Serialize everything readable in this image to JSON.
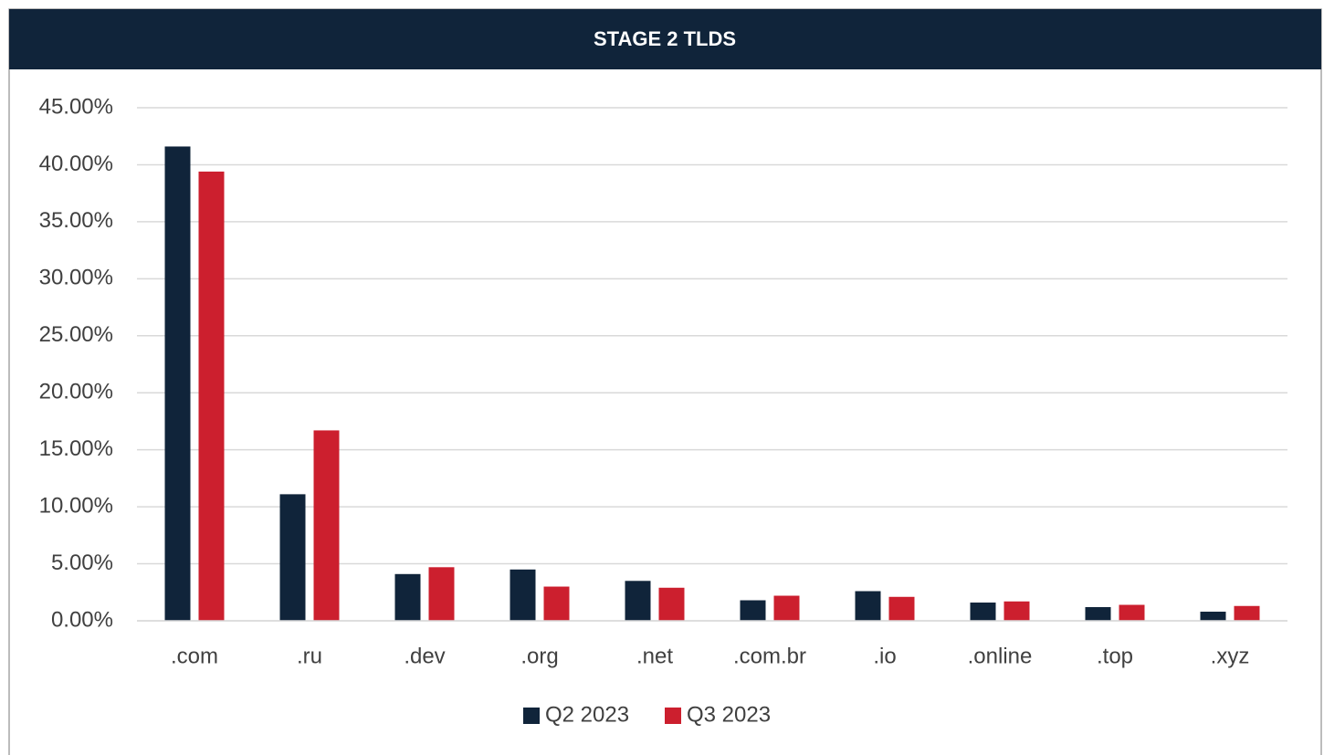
{
  "chart_data": {
    "type": "bar",
    "title": "STAGE 2 TLDS",
    "categories": [
      ".com",
      ".ru",
      ".dev",
      ".org",
      ".net",
      ".com.br",
      ".io",
      ".online",
      ".top",
      ".xyz"
    ],
    "series": [
      {
        "name": "Q2 2023",
        "color": "#10243a",
        "values": [
          41.6,
          11.1,
          4.1,
          4.5,
          3.5,
          1.8,
          2.6,
          1.6,
          1.2,
          0.8
        ]
      },
      {
        "name": "Q3 2023",
        "color": "#cc1f2e",
        "values": [
          39.4,
          16.7,
          4.7,
          3.0,
          2.9,
          2.2,
          2.1,
          1.7,
          1.4,
          1.3
        ]
      }
    ],
    "ylim": [
      0,
      45
    ],
    "yticks": [
      {
        "value": 0,
        "label": "0.00%"
      },
      {
        "value": 5,
        "label": "5.00%"
      },
      {
        "value": 10,
        "label": "10.00%"
      },
      {
        "value": 15,
        "label": "15.00%"
      },
      {
        "value": 20,
        "label": "20.00%"
      },
      {
        "value": 25,
        "label": "25.00%"
      },
      {
        "value": 30,
        "label": "30.00%"
      },
      {
        "value": 35,
        "label": "35.00%"
      },
      {
        "value": 40,
        "label": "40.00%"
      },
      {
        "value": 45,
        "label": "45.00%"
      }
    ],
    "grid": true,
    "legend": "bottom"
  }
}
